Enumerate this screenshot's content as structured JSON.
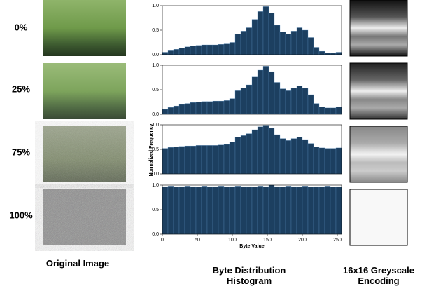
{
  "rows": [
    {
      "label": "0%"
    },
    {
      "label": "25%"
    },
    {
      "label": "75%"
    },
    {
      "label": "100%"
    }
  ],
  "columns": [
    "Original Image",
    "Byte Distribution Histogram",
    "16x16 Greyscale Encoding"
  ],
  "ylabel": "Normalized Frequency",
  "chart_data": [
    {
      "type": "histogram",
      "color": "#1c3f60",
      "xlim": [
        0,
        256
      ],
      "ylim": [
        0,
        1
      ],
      "yticks": [
        {
          "value": 0,
          "label": "0.0"
        },
        {
          "value": 0.5,
          "label": "0.5"
        },
        {
          "value": 1,
          "label": "1.0"
        }
      ],
      "bins": [
        0,
        8,
        16,
        24,
        32,
        40,
        48,
        56,
        64,
        72,
        80,
        88,
        96,
        104,
        112,
        120,
        128,
        136,
        144,
        152,
        160,
        168,
        176,
        184,
        192,
        200,
        208,
        216,
        224,
        232,
        240,
        248,
        256
      ],
      "values": [
        0.05,
        0.08,
        0.11,
        0.14,
        0.16,
        0.18,
        0.19,
        0.2,
        0.2,
        0.2,
        0.21,
        0.22,
        0.25,
        0.42,
        0.48,
        0.55,
        0.72,
        0.88,
        0.98,
        0.85,
        0.6,
        0.46,
        0.42,
        0.48,
        0.55,
        0.5,
        0.35,
        0.15,
        0.07,
        0.04,
        0.03,
        0.05
      ]
    },
    {
      "type": "histogram",
      "color": "#1c3f60",
      "xlim": [
        0,
        256
      ],
      "ylim": [
        0,
        1
      ],
      "yticks": [
        {
          "value": 0,
          "label": "0.0"
        },
        {
          "value": 0.5,
          "label": "0.5"
        },
        {
          "value": 1,
          "label": "1.0"
        }
      ],
      "bins": [
        0,
        8,
        16,
        24,
        32,
        40,
        48,
        56,
        64,
        72,
        80,
        88,
        96,
        104,
        112,
        120,
        128,
        136,
        144,
        152,
        160,
        168,
        176,
        184,
        192,
        200,
        208,
        216,
        224,
        232,
        240,
        248,
        256
      ],
      "values": [
        0.1,
        0.14,
        0.17,
        0.2,
        0.22,
        0.24,
        0.25,
        0.26,
        0.26,
        0.27,
        0.27,
        0.28,
        0.32,
        0.48,
        0.54,
        0.6,
        0.76,
        0.9,
        0.98,
        0.87,
        0.65,
        0.52,
        0.48,
        0.53,
        0.58,
        0.53,
        0.4,
        0.22,
        0.15,
        0.13,
        0.13,
        0.15
      ]
    },
    {
      "type": "histogram",
      "color": "#1c3f60",
      "xlim": [
        0,
        256
      ],
      "ylim": [
        0,
        1
      ],
      "yticks": [
        {
          "value": 0,
          "label": "0.0"
        },
        {
          "value": 0.5,
          "label": "0.5"
        },
        {
          "value": 1,
          "label": "1.0"
        }
      ],
      "bins": [
        0,
        8,
        16,
        24,
        32,
        40,
        48,
        56,
        64,
        72,
        80,
        88,
        96,
        104,
        112,
        120,
        128,
        136,
        144,
        152,
        160,
        168,
        176,
        184,
        192,
        200,
        208,
        216,
        224,
        232,
        240,
        248,
        256
      ],
      "values": [
        0.52,
        0.54,
        0.55,
        0.56,
        0.57,
        0.57,
        0.58,
        0.58,
        0.58,
        0.58,
        0.59,
        0.6,
        0.65,
        0.75,
        0.78,
        0.82,
        0.9,
        0.96,
        0.99,
        0.93,
        0.8,
        0.72,
        0.68,
        0.72,
        0.75,
        0.7,
        0.62,
        0.55,
        0.53,
        0.52,
        0.52,
        0.53
      ]
    },
    {
      "type": "histogram",
      "color": "#1c3f60",
      "xlim": [
        0,
        256
      ],
      "ylim": [
        0,
        1
      ],
      "yticks": [
        {
          "value": 0,
          "label": "0.0"
        },
        {
          "value": 0.5,
          "label": "0.5"
        },
        {
          "value": 1,
          "label": "1.0"
        }
      ],
      "xticks": [
        0,
        50,
        100,
        150,
        200,
        250
      ],
      "xlabel": "Byte Value",
      "bins": [
        0,
        8,
        16,
        24,
        32,
        40,
        48,
        56,
        64,
        72,
        80,
        88,
        96,
        104,
        112,
        120,
        128,
        136,
        144,
        152,
        160,
        168,
        176,
        184,
        192,
        200,
        208,
        216,
        224,
        232,
        240,
        248,
        256
      ],
      "values": [
        0.97,
        0.98,
        0.96,
        0.97,
        0.98,
        0.97,
        0.96,
        0.98,
        0.97,
        0.97,
        0.98,
        0.96,
        0.97,
        0.98,
        0.97,
        0.97,
        0.96,
        0.98,
        0.97,
        1,
        0.97,
        0.96,
        0.98,
        0.97,
        0.97,
        0.98,
        0.96,
        0.97,
        0.97,
        0.98,
        0.96,
        0.97
      ]
    }
  ]
}
